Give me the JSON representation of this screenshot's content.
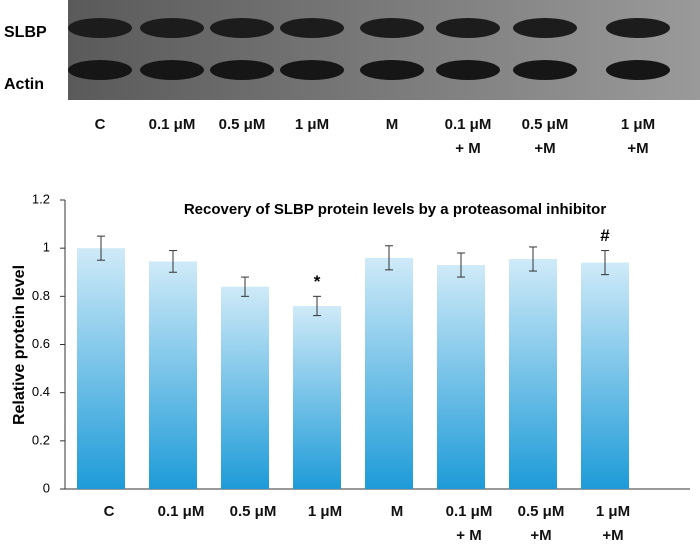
{
  "blot": {
    "rows": [
      "SLBP",
      "Actin"
    ],
    "lanes": [
      "C",
      "0.1 μM",
      "0.5 μM",
      "1 μM",
      "M",
      "0.1 μM\n+ M",
      "0.5 μM\n+M",
      "1 μM\n+M"
    ]
  },
  "chart_data": {
    "type": "bar",
    "title": "Recovery of SLBP protein levels by a proteasomal inhibitor",
    "y_label": "Relative protein level",
    "categories": [
      "C",
      "0.1 μM",
      "0.5 μM",
      "1 μM",
      "M",
      "0.1 μM\n+ M",
      "0.5 μM\n+M",
      "1 μM\n+M"
    ],
    "values": [
      1.0,
      0.945,
      0.84,
      0.76,
      0.96,
      0.93,
      0.955,
      0.94
    ],
    "errors": [
      0.05,
      0.045,
      0.04,
      0.04,
      0.05,
      0.05,
      0.05,
      0.05
    ],
    "annotations": [
      {
        "text": "*",
        "category": "1 μM"
      },
      {
        "text": "#",
        "category": "1 μM\n+M"
      }
    ],
    "color": "#1e9bd8",
    "ylim": [
      0,
      1.2
    ],
    "yticks": [
      0,
      0.2,
      0.4,
      0.6,
      0.8,
      1,
      1.2
    ]
  }
}
